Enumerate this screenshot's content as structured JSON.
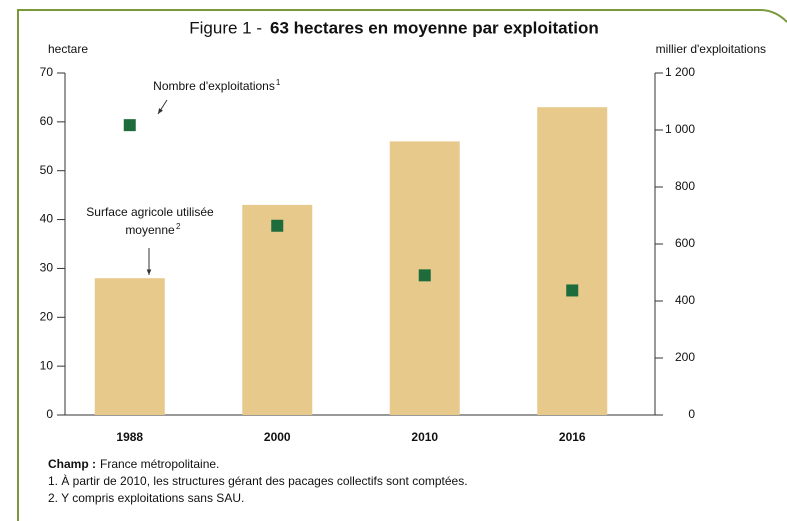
{
  "chart_data": {
    "type": "bar",
    "title_prefix": "Figure 1 -",
    "title": "63 hectares en moyenne par exploitation",
    "ylabel": "hectare",
    "y2label": "millier d'exploitations",
    "categories": [
      "1988",
      "2000",
      "2010",
      "2016"
    ],
    "series": [
      {
        "name": [
          "Surface agricole utilisée",
          "moyenne"
        ],
        "footnote_mark": "2",
        "type": "bar",
        "color": "#e8c98c",
        "values": [
          28,
          43,
          56,
          63
        ]
      },
      {
        "name": [
          "Nombre d'exploitations"
        ],
        "footnote_mark": "1",
        "type": "square",
        "axis": "y2",
        "color": "#1e6b3c",
        "values": [
          1017,
          664,
          490,
          437
        ]
      }
    ],
    "ylim": [
      0,
      70
    ],
    "yticks": [
      0,
      10,
      20,
      30,
      40,
      50,
      60,
      70
    ],
    "y2lim": [
      0,
      1200
    ],
    "y2ticks": [
      0,
      200,
      400,
      600,
      800,
      {
        "value": 1000,
        "label": "1 000"
      },
      {
        "value": 1200,
        "label": "1 200"
      }
    ],
    "notes": [
      {
        "bold": "Champ :",
        "text": "France métropolitaine."
      },
      {
        "text": "1. À partir de 2010,  les structures gérant des pacages collectifs sont comptées."
      },
      {
        "text": "2. Y compris exploitations sans SAU."
      }
    ]
  }
}
